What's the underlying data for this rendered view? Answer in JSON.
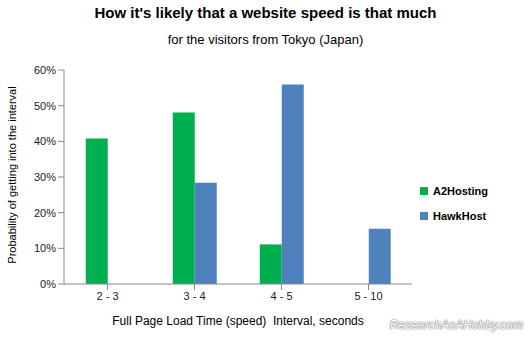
{
  "chart_data": {
    "type": "bar",
    "title": "How it's likely that a website speed is that much",
    "subtitle": "for the visitors from Tokyo (Japan)",
    "x_label": "Full Page Load Time (speed)  Interval, seconds",
    "y_label": "Probability of getting into the interval",
    "annotations": [
      "ResearchAsAHobby.com"
    ],
    "categories": [
      "2 - 3",
      "3 - 4",
      "4 - 5",
      "5 - 10"
    ],
    "series": [
      {
        "name": "A2Hosting",
        "color": "#00b050",
        "values": [
          40.8,
          48.1,
          11.1,
          null
        ]
      },
      {
        "name": "HawkHost",
        "color": "#4f81bd",
        "values": [
          null,
          28.4,
          55.9,
          15.5
        ]
      }
    ],
    "ylim": [
      0,
      60
    ],
    "yticks": [
      {
        "value": 0,
        "label": "0%"
      },
      {
        "value": 10,
        "label": "10%"
      },
      {
        "value": 20,
        "label": "20%"
      },
      {
        "value": 30,
        "label": "30%"
      },
      {
        "value": 40,
        "label": "40%"
      },
      {
        "value": 50,
        "label": "50%"
      },
      {
        "value": 60,
        "label": "60%"
      }
    ],
    "grid": false,
    "legend": "right"
  }
}
